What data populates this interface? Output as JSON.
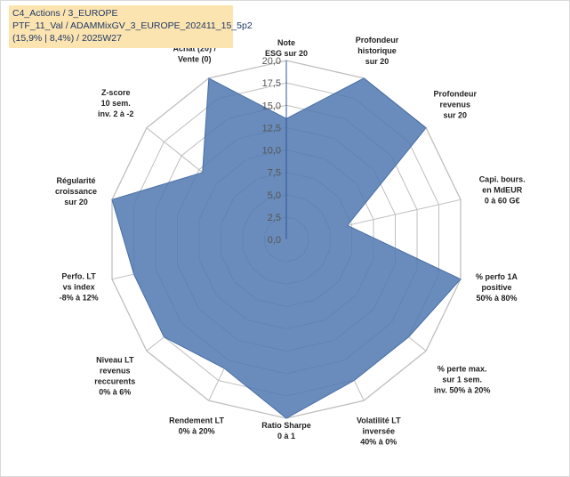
{
  "info_box": {
    "line1": "C4_Actions / 3_EUROPE",
    "line2": "PTF_11_Val / ADAMMixGV_3_EUROPE_202411_15_5p2",
    "line3": "(15,9% | 8,4%) / 2025W27"
  },
  "chart_data": {
    "type": "radar",
    "title": "",
    "r_range": [
      0,
      20
    ],
    "tick_values": [
      0,
      2.5,
      5,
      7.5,
      10,
      12.5,
      15,
      17.5,
      20
    ],
    "tick_labels": [
      "0,0",
      "2,5",
      "5,0",
      "7,5",
      "10,0",
      "12,5",
      "15,0",
      "17,5",
      "20,0"
    ],
    "grid": true,
    "fill_color": "#4f78b0",
    "grid_color": "#bfbfbf",
    "axes": [
      {
        "label": [
          "Note",
          "ESG sur 20"
        ],
        "value": 13.5
      },
      {
        "label": [
          "Profondeur",
          "historique",
          "sur 20"
        ],
        "value": 20
      },
      {
        "label": [
          "Profondeur",
          "revenus",
          "sur 20"
        ],
        "value": 20
      },
      {
        "label": [
          "Capi. bours.",
          "en MdEUR",
          "0 à 60 G€"
        ],
        "value": 7
      },
      {
        "label": [
          "% perfo 1A",
          "positive",
          "50% à 80%"
        ],
        "value": 20
      },
      {
        "label": [
          "% perte max.",
          "sur 1 sem.",
          "inv. 50% à 20%"
        ],
        "value": 17.5
      },
      {
        "label": [
          "Volatilité LT",
          "inversée",
          "40% à 0%"
        ],
        "value": 17.5
      },
      {
        "label": [
          "Ratio Sharpe",
          "0 à 1"
        ],
        "value": 20
      },
      {
        "label": [
          "Rendement LT",
          "0% à 20%"
        ],
        "value": 16
      },
      {
        "label": [
          "Niveau LT",
          "revenus",
          "reccurents",
          "0% à 6%"
        ],
        "value": 17.5
      },
      {
        "label": [
          "Perfo. LT",
          "vs index",
          "-8% à 12%"
        ],
        "value": 17.5
      },
      {
        "label": [
          "Régularité",
          "croissance",
          "sur 20"
        ],
        "value": 20
      },
      {
        "label": [
          "Z-score",
          "10 sem.",
          "inv. 2 à -2"
        ],
        "value": 12
      },
      {
        "label": [
          "Momentum",
          "Achat (20) /",
          "Vente (0)"
        ],
        "value": 20
      }
    ]
  }
}
